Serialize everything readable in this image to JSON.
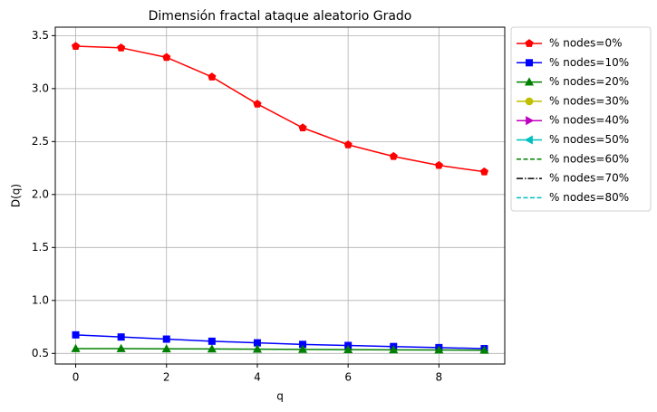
{
  "chart_data": {
    "type": "line",
    "title": "Dimensión fractal ataque aleatorio Grado",
    "xlabel": "q",
    "ylabel": "D(q)",
    "x": [
      0,
      1,
      2,
      3,
      4,
      5,
      6,
      7,
      8,
      9
    ],
    "xlim": [
      -0.45,
      9.45
    ],
    "ylim": [
      0.4,
      3.58
    ],
    "xticks": [
      0,
      2,
      4,
      6,
      8
    ],
    "yticks": [
      0.5,
      {
        "value": 1,
        "label": "1.0"
      },
      1.5,
      {
        "value": 2,
        "label": "2.0"
      },
      2.5,
      {
        "value": 3,
        "label": "3.0"
      },
      3.5
    ],
    "grid": true,
    "legend": "outside upper right",
    "series": [
      {
        "name": "% nodes=0%",
        "color": "#ff0000",
        "marker": "pentagon",
        "dash": "solid",
        "values": [
          3.4,
          3.385,
          3.295,
          3.11,
          2.855,
          2.63,
          2.47,
          2.36,
          2.275,
          2.215
        ]
      },
      {
        "name": "% nodes=10%",
        "color": "#0000ff",
        "marker": "square",
        "dash": "solid",
        "values": [
          0.675,
          0.655,
          0.635,
          0.615,
          0.6,
          0.585,
          0.575,
          0.565,
          0.555,
          0.545
        ]
      },
      {
        "name": "% nodes=20%",
        "color": "#008000",
        "marker": "triangle-up",
        "dash": "solid",
        "values": [
          0.545,
          0.545,
          0.543,
          0.542,
          0.54,
          0.538,
          0.536,
          0.534,
          0.532,
          0.53
        ]
      },
      {
        "name": "% nodes=30%",
        "color": "#bfbf00",
        "marker": "circle",
        "dash": "solid",
        "values": [
          null,
          null,
          null,
          null,
          null,
          null,
          null,
          null,
          null,
          null
        ]
      },
      {
        "name": "% nodes=40%",
        "color": "#bf00bf",
        "marker": "triangle-right",
        "dash": "solid",
        "values": [
          null,
          null,
          null,
          null,
          null,
          null,
          null,
          null,
          null,
          null
        ]
      },
      {
        "name": "% nodes=50%",
        "color": "#00bfbf",
        "marker": "triangle-left",
        "dash": "solid",
        "values": [
          null,
          null,
          null,
          null,
          null,
          null,
          null,
          null,
          null,
          null
        ]
      },
      {
        "name": "% nodes=60%",
        "color": "#008000",
        "marker": "none",
        "dash": "dashed",
        "values": [
          null,
          null,
          null,
          null,
          null,
          null,
          null,
          null,
          null,
          null
        ]
      },
      {
        "name": "% nodes=70%",
        "color": "#000000",
        "marker": "none",
        "dash": "dashdot",
        "values": [
          null,
          null,
          null,
          null,
          null,
          null,
          null,
          null,
          null,
          null
        ]
      },
      {
        "name": "% nodes=80%",
        "color": "#00bfbf",
        "marker": "none",
        "dash": "dashed",
        "values": [
          null,
          null,
          null,
          null,
          null,
          null,
          null,
          null,
          null,
          null
        ]
      }
    ]
  }
}
